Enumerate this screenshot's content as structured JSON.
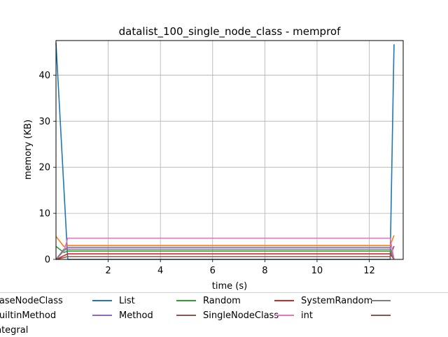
{
  "chart_data": {
    "type": "line",
    "title": "datalist_100_single_node_class - memprof",
    "xlabel": "time (s)",
    "ylabel": "memory (KB)",
    "xlim": [
      0,
      13.3
    ],
    "ylim": [
      0,
      47.5
    ],
    "xticks": [
      2,
      4,
      6,
      8,
      10,
      12
    ],
    "xtick_labels": [
      "2",
      "4",
      "6",
      "8",
      "10",
      "12"
    ],
    "yticks": [
      0,
      10,
      20,
      30,
      40
    ],
    "ytick_labels": [
      "0",
      "10",
      "20",
      "30",
      "40"
    ],
    "grid": true,
    "legend_placement": "below plot",
    "series": [
      {
        "name": "List",
        "color": "#1f77b4",
        "x": [
          0,
          0.45,
          12.8,
          12.95
        ],
        "y": [
          47,
          0,
          0,
          46.7
        ]
      },
      {
        "name": "",
        "color": "#ff7f0e",
        "x": [
          0,
          0.3,
          0.45,
          12.8,
          12.95
        ],
        "y": [
          5.0,
          2.8,
          3.0,
          3.0,
          5.2
        ]
      },
      {
        "name": "Random",
        "color": "#2ca02c",
        "x": [
          0,
          0.3,
          0.45,
          12.8,
          12.95
        ],
        "y": [
          2.8,
          1.5,
          1.8,
          1.8,
          0
        ]
      },
      {
        "name": "SystemRandom",
        "color": "#d62728",
        "x": [
          0,
          0.3,
          0.45,
          12.8,
          12.95
        ],
        "y": [
          0,
          0.8,
          1.2,
          1.2,
          0
        ]
      },
      {
        "name": "Method",
        "color": "#9467bd",
        "x": [
          0,
          0.3,
          0.45,
          12.8,
          12.95
        ],
        "y": [
          0,
          2.2,
          2.6,
          2.6,
          0
        ]
      },
      {
        "name": "SingleNodeClass",
        "color": "#8c564b",
        "x": [
          0,
          0.3,
          0.45,
          12.8,
          12.95
        ],
        "y": [
          0,
          0.4,
          0.6,
          0.6,
          2.9
        ]
      },
      {
        "name": "int",
        "color": "#e377c2",
        "x": [
          0,
          0.3,
          0.45,
          12.8,
          12.95
        ],
        "y": [
          0,
          1.8,
          4.6,
          4.6,
          0
        ]
      },
      {
        "name": "",
        "color": "#7f7f7f",
        "x": [
          0,
          0.3,
          0.45,
          12.8,
          12.95
        ],
        "y": [
          0,
          2.0,
          2.2,
          2.2,
          0
        ]
      }
    ],
    "legend": [
      {
        "label": "BaseNodeClass",
        "color": ""
      },
      {
        "label": "List",
        "color": "#1f77b4"
      },
      {
        "label": "Random",
        "color": "#2ca02c"
      },
      {
        "label": "SystemRandom",
        "color": "#d62728"
      },
      {
        "label": "",
        "color": "#7f7f7f"
      },
      {
        "label": "BuiltinMethod",
        "color": ""
      },
      {
        "label": "Method",
        "color": "#9467bd"
      },
      {
        "label": "SingleNodeClass",
        "color": "#8c564b"
      },
      {
        "label": "int",
        "color": "#e377c2"
      },
      {
        "label": "",
        "color": "#8c564b"
      },
      {
        "label": "Integral",
        "color": ""
      }
    ]
  }
}
